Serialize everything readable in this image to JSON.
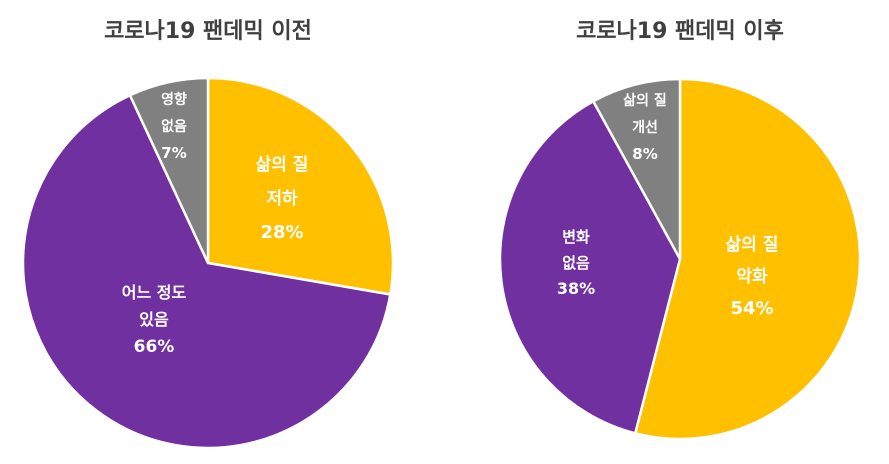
{
  "chart_data": [
    {
      "type": "pie",
      "title": "코로나19 팬데믹 이전",
      "slices": [
        {
          "label": [
            "삶의 질",
            "저하"
          ],
          "value": 28,
          "value_text": "28%",
          "color": "#FFC000"
        },
        {
          "label": [
            "어느 정도",
            "있음"
          ],
          "value": 66,
          "value_text": "66%",
          "color": "#7030A0"
        },
        {
          "label": [
            "영향",
            "없음"
          ],
          "value": 7,
          "value_text": "7%",
          "color": "#808080"
        }
      ],
      "legend": "none"
    },
    {
      "type": "pie",
      "title": "코로나19 팬데믹 이후",
      "slices": [
        {
          "label": [
            "삶의 질",
            "악화"
          ],
          "value": 54,
          "value_text": "54%",
          "color": "#FFC000"
        },
        {
          "label": [
            "변화",
            "없음"
          ],
          "value": 38,
          "value_text": "38%",
          "color": "#7030A0"
        },
        {
          "label": [
            "삶의 질",
            "개선"
          ],
          "value": 8,
          "value_text": "8%",
          "color": "#808080"
        }
      ],
      "legend": "none"
    }
  ]
}
